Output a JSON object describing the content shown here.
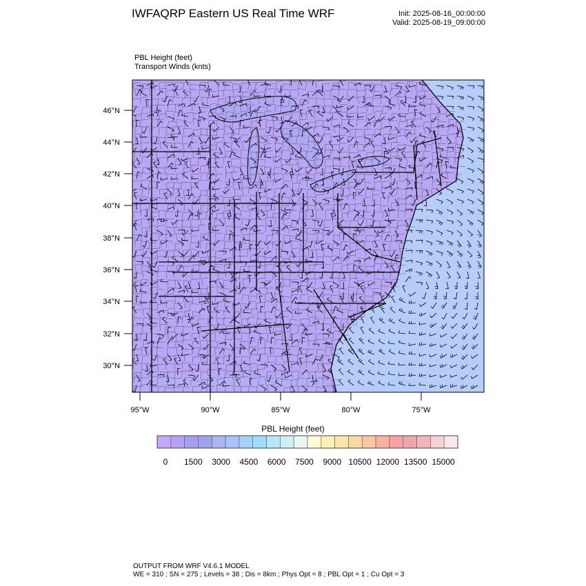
{
  "header": {
    "title": "IWFAQRP Eastern US Real Time WRF",
    "init": "Init: 2025-08-16_00:00:00",
    "valid": "Valid: 2025-08-19_09:00:00"
  },
  "field_labels": {
    "line1": "PBL Height   (feet)",
    "line2": "Transport Winds   (knts)"
  },
  "map": {
    "lat_ticks": [
      "46°N",
      "44°N",
      "42°N",
      "40°N",
      "38°N",
      "36°N",
      "34°N",
      "32°N",
      "30°N"
    ],
    "lon_ticks": [
      "95°W",
      "90°W",
      "85°W",
      "80°W",
      "75°W"
    ],
    "land_color": "#b9a6f5",
    "ocean_color": "#b6cdfa"
  },
  "colorbar": {
    "title": "PBL Height  (feet)",
    "labels": [
      "0",
      "1500",
      "3000",
      "4500",
      "6000",
      "7500",
      "9000",
      "10500",
      "12000",
      "13500",
      "15000"
    ],
    "colors": [
      "#c3a9f7",
      "#b5a2f5",
      "#a99df2",
      "#a2a3ef",
      "#aab5f3",
      "#a8c3f7",
      "#a5d0f7",
      "#9dddf7",
      "#b4e8f7",
      "#cdeff5",
      "#ecf5ee",
      "#fdfbd6",
      "#fdf0b6",
      "#fde6a8",
      "#fbd8a6",
      "#fbc7a0",
      "#f9b2a2",
      "#f7a3a4",
      "#eda6ab",
      "#f1b6bb",
      "#f7d0d4",
      "#fbe6ea"
    ]
  },
  "footer": {
    "line1": "OUTPUT FROM WRF V4.6.1 MODEL",
    "line2": "WE = 310 ; SN = 275 ; Levels = 38 ; Dis = 8km ; Phys Opt = 8 ; PBL Opt = 1 ; Cu Opt = 3"
  }
}
